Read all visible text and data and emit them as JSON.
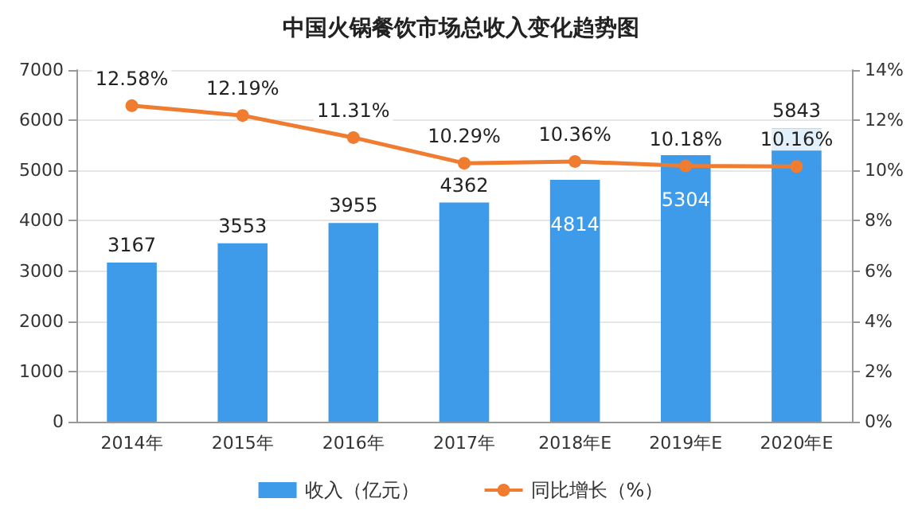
{
  "chart_data": {
    "type": "bar",
    "title": "中国火锅餐饮市场总收入变化趋势图",
    "categories": [
      "2014年",
      "2015年",
      "2016年",
      "2017年",
      "2018年E",
      "2019年E",
      "2020年E"
    ],
    "series": [
      {
        "name": "收入（亿元）",
        "color": "#3d9be9",
        "values": [
          3167,
          3553,
          3955,
          4362,
          4814,
          5304,
          5843
        ]
      },
      {
        "name": "同比增长（%）",
        "type": "line",
        "axis": "y2",
        "color": "#f07c30",
        "marker": "circle",
        "values": [
          12.58,
          12.19,
          11.31,
          10.29,
          10.36,
          10.18,
          10.16
        ],
        "value_labels": [
          "12.58%",
          "12.19%",
          "11.31%",
          "10.29%",
          "10.36%",
          "10.18%",
          "10.16%"
        ]
      }
    ],
    "ylim": [
      0,
      7000
    ],
    "yticks": [
      0,
      1000,
      2000,
      3000,
      4000,
      5000,
      6000,
      7000
    ],
    "y2lim": [
      0,
      14
    ],
    "y2ticks": [
      {
        "value": 0,
        "label": "0%"
      },
      {
        "value": 2,
        "label": "2%"
      },
      {
        "value": 4,
        "label": "4%"
      },
      {
        "value": 6,
        "label": "6%"
      },
      {
        "value": 8,
        "label": "8%"
      },
      {
        "value": 10,
        "label": "10%"
      },
      {
        "value": 12,
        "label": "12%"
      },
      {
        "value": 14,
        "label": "14%"
      }
    ],
    "data_labels": true,
    "grid": "y",
    "legend": "bottom"
  }
}
